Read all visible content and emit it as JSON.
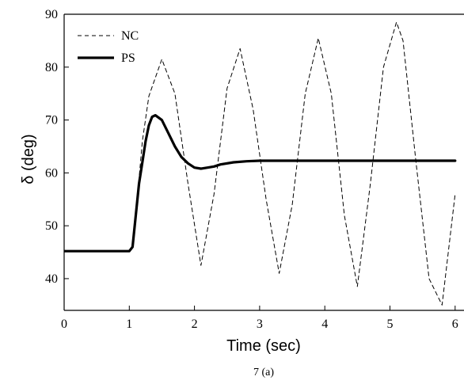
{
  "chart_data": {
    "type": "line",
    "xlabel": "Time (sec)",
    "ylabel": "δ (deg)",
    "caption": "7 (a)",
    "xlim": [
      0,
      6
    ],
    "ylim": [
      34,
      90
    ],
    "x_ticks": [
      0,
      1,
      2,
      3,
      4,
      5,
      6
    ],
    "y_ticks": [
      40,
      50,
      60,
      70,
      80,
      90
    ],
    "grid": false,
    "legend_position": "top-left",
    "series": [
      {
        "name": "NC",
        "style": "dashed",
        "color": "#000000",
        "x": [
          0,
          1.0,
          1.05,
          1.1,
          1.2,
          1.3,
          1.5,
          1.7,
          1.9,
          2.1,
          2.3,
          2.5,
          2.7,
          2.9,
          3.1,
          3.3,
          3.5,
          3.7,
          3.9,
          4.1,
          4.3,
          4.5,
          4.7,
          4.9,
          5.1,
          5.2,
          5.4,
          5.6,
          5.8,
          6.0
        ],
        "y": [
          45.2,
          45.2,
          46.5,
          52.0,
          66.0,
          74.5,
          81.5,
          75.0,
          58.0,
          42.5,
          56.0,
          76.0,
          83.5,
          72.0,
          55.0,
          41.0,
          54.0,
          75.0,
          85.5,
          75.0,
          52.0,
          38.5,
          58.0,
          80.0,
          88.5,
          85.0,
          62.0,
          40.0,
          35.0,
          56.0
        ]
      },
      {
        "name": "PS",
        "style": "solid",
        "color": "#000000",
        "x": [
          0,
          1.0,
          1.05,
          1.1,
          1.15,
          1.2,
          1.25,
          1.3,
          1.35,
          1.4,
          1.5,
          1.6,
          1.7,
          1.8,
          1.9,
          2.0,
          2.1,
          2.2,
          2.3,
          2.4,
          2.6,
          2.8,
          3.0,
          6.0
        ],
        "y": [
          45.2,
          45.2,
          46.0,
          52.0,
          58.0,
          62.0,
          66.0,
          69.0,
          70.6,
          70.9,
          70.0,
          67.5,
          65.0,
          63.0,
          61.8,
          61.0,
          60.8,
          61.0,
          61.2,
          61.6,
          62.0,
          62.2,
          62.3,
          62.3
        ]
      }
    ]
  }
}
